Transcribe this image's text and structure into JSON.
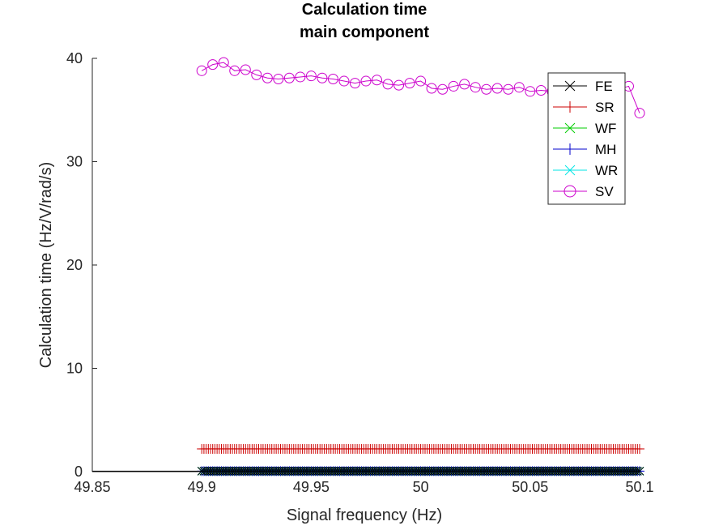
{
  "chart_data": {
    "type": "line",
    "title_lines": [
      "Calculation time",
      "main component"
    ],
    "xlabel": "Signal frequency (Hz)",
    "ylabel": "Calculation time (Hz/V/rad/s)",
    "xlim": [
      49.85,
      50.1
    ],
    "ylim": [
      0,
      40
    ],
    "xticks": [
      49.85,
      49.9,
      49.95,
      50,
      50.05,
      50.1
    ],
    "xtick_labels": [
      "49.85",
      "49.9",
      "49.95",
      "50",
      "50.05",
      "50.1"
    ],
    "yticks": [
      0,
      10,
      20,
      30,
      40
    ],
    "ytick_labels": [
      "0",
      "10",
      "20",
      "30",
      "40"
    ],
    "grid": false,
    "legend_position": "top-right",
    "series": [
      {
        "name": "FE",
        "color": "#000000",
        "marker": "x",
        "level": 0.05,
        "start": 49.9,
        "end": 50.1,
        "count": 201
      },
      {
        "name": "SR",
        "color": "#cc0000",
        "marker": "+",
        "level": 2.2,
        "start": 49.9,
        "end": 50.1,
        "count": 201
      },
      {
        "name": "WF",
        "color": "#00cc00",
        "marker": "x",
        "level": 0.05,
        "start": 49.9,
        "end": 50.1,
        "count": 201
      },
      {
        "name": "MH",
        "color": "#0000cc",
        "marker": "+",
        "level": 0.05,
        "start": 49.9,
        "end": 50.1,
        "count": 201
      },
      {
        "name": "WR",
        "color": "#00e5e5",
        "marker": "x",
        "level": 0.05,
        "start": 49.9,
        "end": 50.1,
        "count": 201
      },
      {
        "name": "SV",
        "color": "#cc00cc",
        "marker": "o",
        "x": [
          49.9,
          49.905,
          49.91,
          49.915,
          49.92,
          49.925,
          49.93,
          49.935,
          49.94,
          49.945,
          49.95,
          49.955,
          49.96,
          49.965,
          49.97,
          49.975,
          49.98,
          49.985,
          49.99,
          49.995,
          50.0,
          50.005,
          50.01,
          50.015,
          50.02,
          50.025,
          50.03,
          50.035,
          50.04,
          50.045,
          50.05,
          50.055,
          50.06,
          50.065,
          50.07,
          50.075,
          50.08,
          50.085,
          50.09,
          50.095,
          50.1
        ],
        "y": [
          38.8,
          39.4,
          39.6,
          38.8,
          38.9,
          38.4,
          38.1,
          38.0,
          38.1,
          38.2,
          38.3,
          38.1,
          38.0,
          37.8,
          37.6,
          37.8,
          37.9,
          37.5,
          37.4,
          37.6,
          37.8,
          37.1,
          37.0,
          37.3,
          37.5,
          37.2,
          37.0,
          37.1,
          37.0,
          37.2,
          36.8,
          36.9,
          36.8,
          36.9,
          36.7,
          36.8,
          36.7,
          36.9,
          37.0,
          37.3,
          34.7
        ]
      }
    ]
  }
}
